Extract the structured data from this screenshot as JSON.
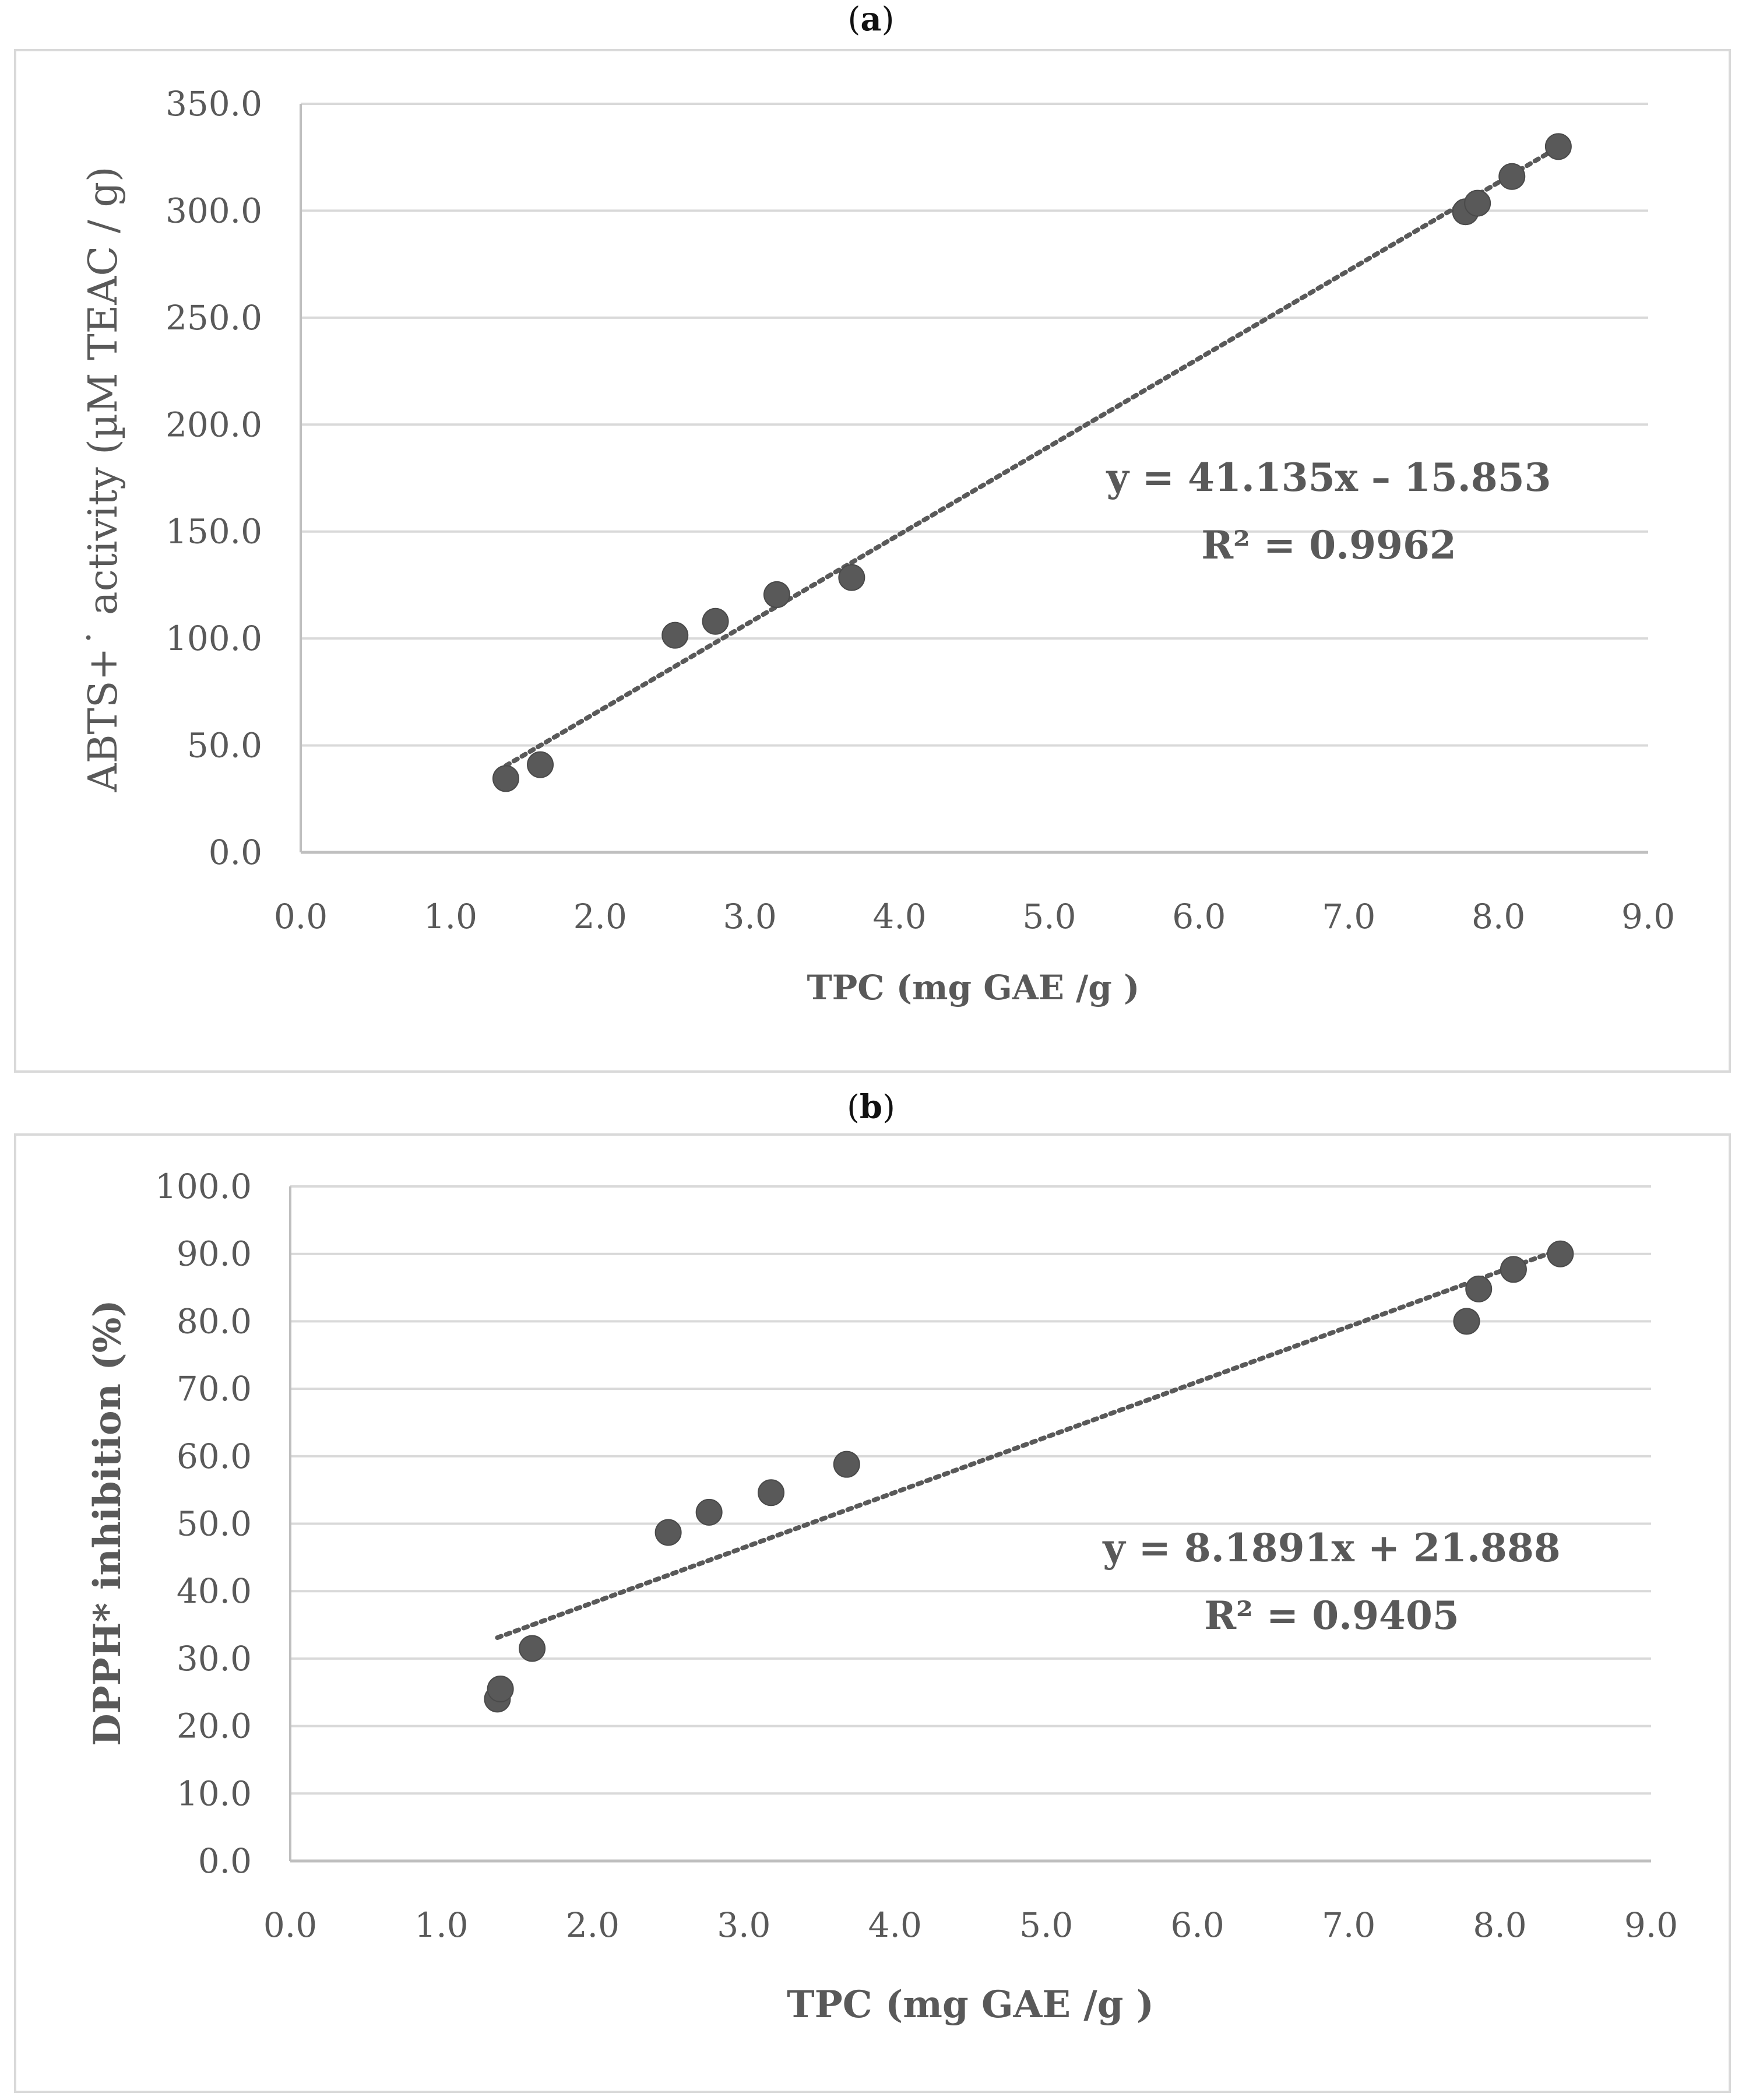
{
  "chart_data": [
    {
      "type": "scatter",
      "panel": "(a)",
      "panel_letter": "a",
      "title": "",
      "xlabel": "TPC (mg GAE /g )",
      "ylabel": "ABTS+˙ activity (µM TEAC / g)",
      "xlim": [
        0,
        9
      ],
      "ylim": [
        0,
        350
      ],
      "xticks": [
        "0.0",
        "1.0",
        "2.0",
        "3.0",
        "4.0",
        "5.0",
        "6.0",
        "7.0",
        "8.0",
        "9.0"
      ],
      "yticks": [
        "0.0",
        "50.0",
        "100.0",
        "150.0",
        "200.0",
        "250.0",
        "300.0",
        "350.0"
      ],
      "xtick_values": [
        0,
        1,
        2,
        3,
        4,
        5,
        6,
        7,
        8,
        9
      ],
      "ytick_values": [
        0,
        50,
        100,
        150,
        200,
        250,
        300,
        350
      ],
      "grid": true,
      "series": [
        {
          "name": "ABTS",
          "color": "#595959",
          "points": [
            {
              "x": 1.37,
              "y": 34.5
            },
            {
              "x": 1.6,
              "y": 41.0
            },
            {
              "x": 2.5,
              "y": 101.5
            },
            {
              "x": 2.77,
              "y": 108.0
            },
            {
              "x": 3.18,
              "y": 120.5
            },
            {
              "x": 3.68,
              "y": 128.5
            },
            {
              "x": 7.78,
              "y": 299.5
            },
            {
              "x": 7.86,
              "y": 303.5
            },
            {
              "x": 8.09,
              "y": 316.0
            },
            {
              "x": 8.4,
              "y": 330.0
            }
          ]
        }
      ],
      "trendline": {
        "slope": 41.135,
        "intercept": -15.853,
        "x_start": 1.37,
        "x_end": 8.4,
        "style": "dotted"
      },
      "equation": "y = 41.135x – 15.853",
      "r_squared": "R² = 0.9962"
    },
    {
      "type": "scatter",
      "panel": "(b)",
      "panel_letter": "b",
      "title": "",
      "xlabel": "TPC (mg GAE /g )",
      "ylabel": "DPPH* inhibition (%)",
      "xlim": [
        0,
        9
      ],
      "ylim": [
        0,
        100
      ],
      "xticks": [
        "0.0",
        "1.0",
        "2.0",
        "3.0",
        "4.0",
        "5.0",
        "6.0",
        "7.0",
        "8.0",
        "9.0"
      ],
      "yticks": [
        "0.0",
        "10.0",
        "20.0",
        "30.0",
        "40.0",
        "50.0",
        "60.0",
        "70.0",
        "80.0",
        "90.0",
        "100.0"
      ],
      "xtick_values": [
        0,
        1,
        2,
        3,
        4,
        5,
        6,
        7,
        8,
        9
      ],
      "ytick_values": [
        0,
        10,
        20,
        30,
        40,
        50,
        60,
        70,
        80,
        90,
        100
      ],
      "grid": true,
      "series": [
        {
          "name": "DPPH",
          "color": "#595959",
          "points": [
            {
              "x": 1.37,
              "y": 24.0
            },
            {
              "x": 1.39,
              "y": 25.5
            },
            {
              "x": 1.6,
              "y": 31.5
            },
            {
              "x": 2.5,
              "y": 48.7
            },
            {
              "x": 2.77,
              "y": 51.7
            },
            {
              "x": 3.18,
              "y": 54.6
            },
            {
              "x": 3.68,
              "y": 58.8
            },
            {
              "x": 7.78,
              "y": 80.0
            },
            {
              "x": 7.86,
              "y": 84.8
            },
            {
              "x": 8.09,
              "y": 87.7
            },
            {
              "x": 8.4,
              "y": 90.0
            }
          ]
        }
      ],
      "trendline": {
        "slope": 8.1891,
        "intercept": 21.888,
        "x_start": 1.37,
        "x_end": 8.4,
        "style": "dotted"
      },
      "equation": "y = 8.1891x + 21.888",
      "r_squared": "R² = 0.9405"
    }
  ]
}
